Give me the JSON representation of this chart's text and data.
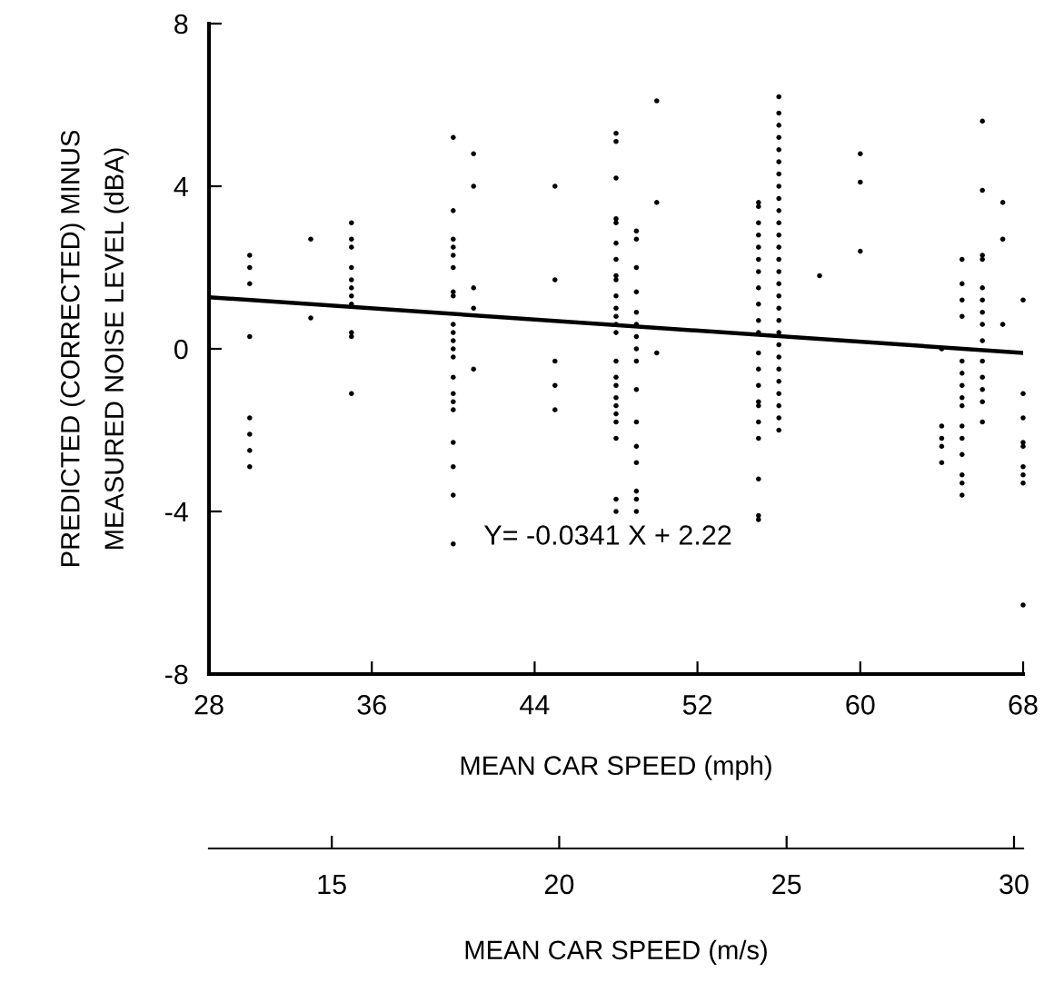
{
  "chart_data": {
    "type": "scatter",
    "xlabel": "MEAN CAR SPEED (mph)",
    "ylabel": "PREDICTED (CORRECTED) MINUS\nMEASURED NOISE LEVEL (dBA)",
    "x2label": "MEAN CAR SPEED (m/s)",
    "xlim": [
      28,
      68
    ],
    "xticks": [
      28,
      36,
      44,
      52,
      60,
      68
    ],
    "ylim": [
      -8,
      8
    ],
    "yticks": [
      -8,
      -4,
      0,
      4,
      8
    ],
    "x2lim": [
      12.3,
      30.2
    ],
    "x2ticks": [
      15,
      20,
      25,
      30
    ],
    "grid": false,
    "legend": false,
    "annotations": [
      "Y= -0.0341 X + 2.22"
    ],
    "series": [
      {
        "marker": "circle",
        "color": "#000000",
        "x": [
          30,
          30,
          30,
          30,
          30,
          30,
          30,
          30,
          33,
          33,
          35,
          35,
          35,
          35,
          35,
          35,
          35,
          35,
          35,
          35,
          35,
          40,
          40,
          40,
          40,
          40,
          40,
          40,
          40,
          40,
          40,
          40,
          40,
          40,
          40,
          40,
          40,
          40,
          40,
          40,
          40,
          40,
          41,
          41,
          41,
          41,
          41,
          45,
          45,
          45,
          45,
          45,
          48,
          48,
          48,
          48,
          48,
          48,
          48,
          48,
          48,
          48,
          48,
          48,
          48,
          48,
          48,
          48,
          48,
          48,
          48,
          48,
          48,
          48,
          48,
          48,
          49,
          49,
          49,
          49,
          49,
          49,
          49,
          49,
          49,
          49,
          49,
          49,
          49,
          49,
          49,
          49,
          50,
          50,
          50,
          55,
          55,
          55,
          55,
          55,
          55,
          55,
          55,
          55,
          55,
          55,
          55,
          55,
          55,
          55,
          55,
          55,
          55,
          55,
          55,
          55,
          56,
          56,
          56,
          56,
          56,
          56,
          56,
          56,
          56,
          56,
          56,
          56,
          56,
          56,
          56,
          56,
          56,
          56,
          56,
          56,
          56,
          56,
          56,
          56,
          56,
          56,
          56,
          56,
          58,
          60,
          60,
          60,
          64,
          64,
          64,
          64,
          64,
          65,
          65,
          65,
          65,
          65,
          65,
          65,
          65,
          65,
          65,
          65,
          65,
          65,
          65,
          65,
          66,
          66,
          66,
          66,
          66,
          66,
          66,
          66,
          66,
          66,
          66,
          66,
          66,
          66,
          67,
          67,
          67,
          68,
          68,
          68,
          68,
          68,
          68,
          68,
          68,
          68
        ],
        "values": [
          2.3,
          2.0,
          1.6,
          0.3,
          -1.7,
          -2.1,
          -2.5,
          -2.9,
          2.7,
          0.76,
          3.1,
          2.7,
          2.5,
          2.0,
          1.7,
          1.5,
          1.3,
          1.1,
          0.4,
          0.3,
          -1.1,
          5.2,
          3.4,
          2.7,
          2.5,
          2.3,
          2.0,
          1.4,
          1.3,
          0.6,
          0.4,
          0.2,
          0.0,
          -0.2,
          -0.7,
          -1.1,
          -1.3,
          -1.5,
          -2.3,
          -2.9,
          -3.6,
          -4.8,
          4.8,
          4.0,
          1.5,
          1.0,
          -0.5,
          4.0,
          1.7,
          -0.3,
          -0.9,
          -1.5,
          5.3,
          5.1,
          4.2,
          3.2,
          3.1,
          2.6,
          2.2,
          1.8,
          1.7,
          1.3,
          1.0,
          0.8,
          0.6,
          0.4,
          -0.3,
          -0.7,
          -0.9,
          -1.2,
          -1.4,
          -1.6,
          -1.8,
          -2.2,
          -3.7,
          -4.0,
          2.9,
          2.7,
          2.0,
          1.4,
          0.9,
          0.6,
          0.3,
          0.0,
          -0.3,
          -1.0,
          -1.8,
          -2.4,
          -2.8,
          -3.5,
          -3.7,
          -4.0,
          6.1,
          3.6,
          -0.1,
          3.6,
          3.5,
          3.1,
          2.8,
          2.5,
          2.2,
          1.9,
          1.5,
          1.1,
          0.7,
          0.4,
          -0.1,
          -0.5,
          -0.9,
          -1.3,
          -1.4,
          -1.8,
          -2.2,
          -3.2,
          -4.1,
          -4.2,
          6.2,
          5.8,
          5.5,
          5.2,
          4.9,
          4.6,
          4.3,
          4.0,
          3.7,
          3.4,
          3.1,
          2.8,
          2.5,
          2.2,
          1.9,
          1.6,
          1.3,
          1.0,
          0.7,
          0.4,
          0.1,
          -0.2,
          -0.5,
          -0.8,
          -1.1,
          -1.4,
          -1.7,
          -2.0,
          1.8,
          4.8,
          4.1,
          2.4,
          0.0,
          -1.9,
          -2.2,
          -2.4,
          -2.8,
          2.2,
          1.6,
          1.2,
          0.8,
          -0.3,
          -0.6,
          -0.9,
          -1.2,
          -1.4,
          -1.9,
          -2.2,
          -2.6,
          -3.1,
          -3.3,
          -3.6,
          5.6,
          3.9,
          2.3,
          2.2,
          1.5,
          1.2,
          0.9,
          0.6,
          0.2,
          -0.3,
          -0.7,
          -1.0,
          -1.3,
          -1.8,
          3.6,
          2.7,
          0.6,
          1.2,
          -1.1,
          -1.7,
          -2.3,
          -2.4,
          -2.9,
          -3.1,
          -3.3,
          -6.3
        ]
      },
      {
        "type": "line",
        "marker": "none",
        "color": "#000000",
        "x": [
          28,
          68
        ],
        "values": [
          1.27,
          -0.1
        ]
      }
    ]
  }
}
